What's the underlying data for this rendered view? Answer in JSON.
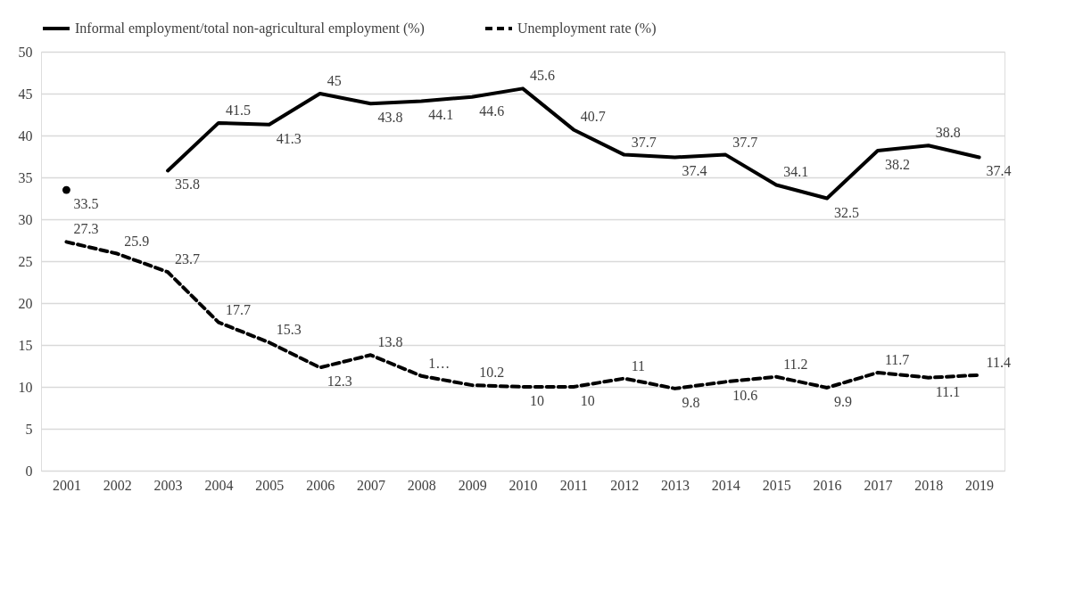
{
  "chart_data": {
    "type": "line",
    "categories": [
      "2001",
      "2002",
      "2003",
      "2004",
      "2005",
      "2006",
      "2007",
      "2008",
      "2009",
      "2010",
      "2011",
      "2012",
      "2013",
      "2014",
      "2015",
      "2016",
      "2017",
      "2018",
      "2019"
    ],
    "series": [
      {
        "name": "Informal employment/total non-agricultural employment (%)",
        "color": "#000000",
        "line_style": "solid",
        "values": [
          33.5,
          null,
          35.8,
          41.5,
          41.3,
          45,
          43.8,
          44.1,
          44.6,
          45.6,
          40.7,
          37.7,
          37.4,
          37.7,
          34.1,
          32.5,
          38.2,
          38.8,
          37.4
        ]
      },
      {
        "name": "Unemployment rate (%)",
        "color": "#000000",
        "line_style": "dashed",
        "values": [
          27.3,
          25.9,
          23.7,
          17.7,
          15.3,
          12.3,
          13.8,
          11.3,
          10.2,
          10,
          10,
          11,
          9.8,
          10.6,
          11.2,
          9.9,
          11.7,
          11.1,
          11.4
        ],
        "value_labels": [
          "27.3",
          "25.9",
          "23.7",
          "17.7",
          "15.3",
          "12.3",
          "13.8",
          "1…",
          "10.2",
          "10",
          "10",
          "11",
          "9.8",
          "10.6",
          "11.2",
          "9.9",
          "11.7",
          "11.1",
          "11.4"
        ]
      }
    ],
    "data_labels": true,
    "ylim": [
      0,
      50
    ],
    "yticks": [
      0,
      5,
      10,
      15,
      20,
      25,
      30,
      35,
      40,
      45,
      50
    ],
    "grid": "y",
    "legend": "top",
    "marker": "none"
  }
}
